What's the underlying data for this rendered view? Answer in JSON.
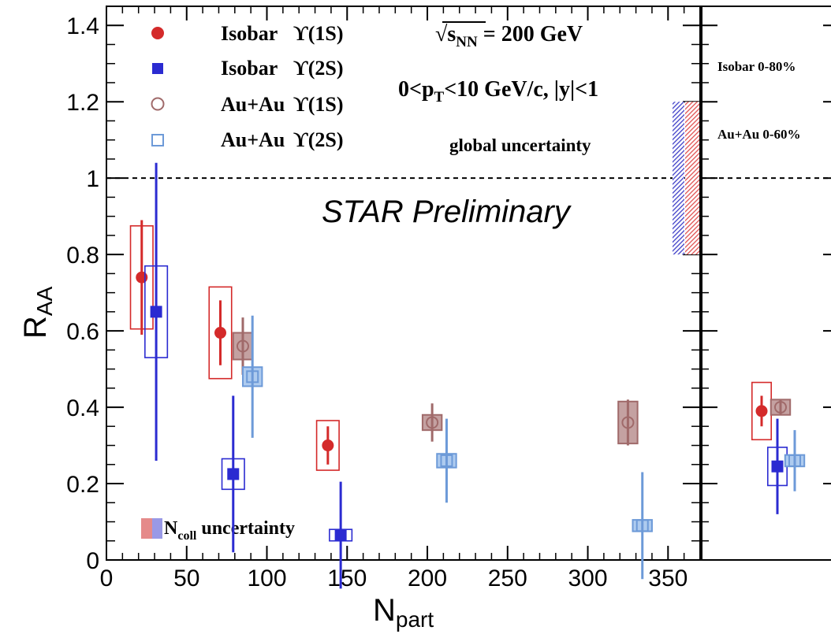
{
  "chart_data": {
    "type": "scatter",
    "title": "",
    "xlabel": "N",
    "xlabel_sub": "part",
    "ylabel": "R",
    "ylabel_sub": "AA",
    "xlim": [
      0,
      370
    ],
    "ylim": [
      0,
      1.45
    ],
    "xticks": [
      0,
      50,
      100,
      150,
      200,
      250,
      300,
      350
    ],
    "yticks": [
      0,
      0.2,
      0.4,
      0.6,
      0.8,
      1,
      1.2,
      1.4
    ],
    "ytick_labels": [
      "0",
      "0.2",
      "0.4",
      "0.6",
      "0.8",
      "1",
      "1.2",
      "1.4"
    ],
    "reference_line": 1,
    "legend_placement": "top-left",
    "annotations": {
      "energy": "√s_NN = 200 GeV",
      "energy_parts": {
        "sqrt": "√",
        "s": "s",
        "sub": "NN",
        "value": " = 200 GeV"
      },
      "kinematics_parts": {
        "a": "0<p",
        "sub": "T",
        "b": "<10 GeV/c, |y|<1"
      },
      "global_uncertainty": "global uncertainty",
      "preliminary": "STAR Preliminary",
      "ncoll_parts": {
        "n": "N",
        "sub": "coll",
        "rest": " uncertainty"
      }
    },
    "series": [
      {
        "name": "Isobar ϒ(1S)",
        "marker": "circle-filled",
        "color": "#d42a2a",
        "points": [
          {
            "x": 22,
            "y": 0.74,
            "stat": 0.15,
            "sys": 0.135,
            "sysw": 7
          },
          {
            "x": 71,
            "y": 0.595,
            "stat": 0.085,
            "sys": 0.12,
            "sysw": 7
          },
          {
            "x": 138,
            "y": 0.3,
            "stat": 0.05,
            "sys": 0.065,
            "sysw": 7
          }
        ]
      },
      {
        "name": "Isobar ϒ(2S)",
        "marker": "square-filled",
        "color": "#2b2bd1",
        "points": [
          {
            "x": 31,
            "y": 0.65,
            "stat": 0.39,
            "sys": 0.12,
            "sysw": 7
          },
          {
            "x": 79,
            "y": 0.225,
            "stat": 0.205,
            "sys": 0.04,
            "sysw": 7
          },
          {
            "x": 146,
            "y": 0.065,
            "stat": 0.14,
            "sys": 0.015,
            "sysw": 7
          }
        ]
      },
      {
        "name": "Au+Au ϒ(1S)",
        "marker": "circle-open",
        "color": "#a06a6a",
        "points": [
          {
            "x": 85,
            "y": 0.56,
            "stat": 0.075,
            "sys": 0.035,
            "sysw": 6
          },
          {
            "x": 203,
            "y": 0.36,
            "stat": 0.05,
            "sys": 0.02,
            "sysw": 6
          },
          {
            "x": 325,
            "y": 0.36,
            "stat": 0.06,
            "sys": 0.055,
            "sysw": 6
          }
        ]
      },
      {
        "name": "Au+Au ϒ(2S)",
        "marker": "square-open",
        "color": "#6d9ad8",
        "points": [
          {
            "x": 91,
            "y": 0.48,
            "stat": 0.16,
            "sys": 0.025,
            "sysw": 6
          },
          {
            "x": 212,
            "y": 0.26,
            "stat": 0.11,
            "sys": 0.018,
            "sysw": 6
          },
          {
            "x": 334,
            "y": 0.09,
            "stat": 0.14,
            "sys": 0.015,
            "sysw": 6
          }
        ]
      }
    ],
    "side_panel": {
      "labels": [
        "Isobar 0-80%",
        "Au+Au 0-60%"
      ],
      "points": [
        {
          "series": "Isobar ϒ(1S)",
          "y": 0.39,
          "stat": 0.04,
          "sys": 0.075
        },
        {
          "series": "Isobar ϒ(2S)",
          "y": 0.245,
          "stat": 0.125,
          "sys": 0.05
        },
        {
          "series": "Au+Au ϒ(1S)",
          "y": 0.4,
          "stat": 0.02,
          "sys": 0.02
        },
        {
          "series": "Au+Au ϒ(2S)",
          "y": 0.26,
          "stat": 0.08,
          "sys": 0.015
        }
      ]
    }
  },
  "legend": {
    "entries": [
      {
        "label_a": "Isobar",
        "label_b": "ϒ(1S)"
      },
      {
        "label_a": "Isobar",
        "label_b": "ϒ(2S)"
      },
      {
        "label_a": "Au+Au",
        "label_b": "ϒ(1S)"
      },
      {
        "label_a": "Au+Au",
        "label_b": "ϒ(2S)"
      }
    ]
  },
  "colors": {
    "isobar_1s": "#d42a2a",
    "isobar_2s": "#2b2bd1",
    "auau_1s": "#a06a6a",
    "auau_2s": "#6d9ad8",
    "auau_1s_fill": "#c4a1a1",
    "auau_2s_fill": "#aecbef",
    "global_red": "#e05050",
    "global_blue": "#3e3ec8"
  }
}
